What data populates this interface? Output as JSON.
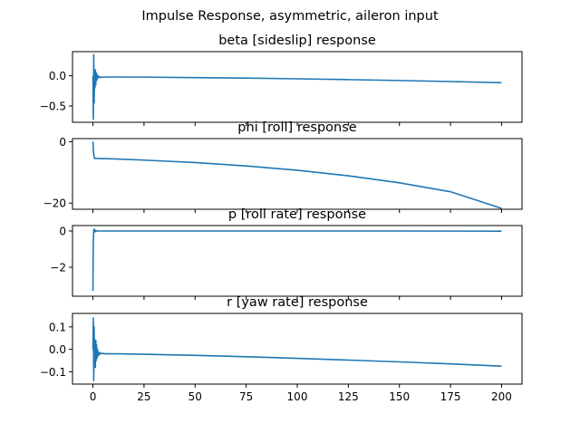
{
  "suptitle": "Impulse Response, asymmetric, aileron input",
  "line_color": "#1f77b4",
  "x_ticks": [
    0,
    25,
    50,
    75,
    100,
    125,
    150,
    175,
    200
  ],
  "chart_data": [
    {
      "type": "line",
      "title": "beta [sideslip] response",
      "xlim": [
        -10,
        210
      ],
      "ylim": [
        -0.77,
        0.4
      ],
      "yticks": [
        0.0,
        -0.5
      ],
      "ytick_labels": [
        "0.0",
        "−0.5"
      ],
      "x": [
        0,
        0.2,
        0.4,
        0.6,
        0.8,
        1.0,
        1.2,
        1.4,
        1.6,
        1.8,
        2.0,
        2.2,
        2.4,
        2.6,
        3.0,
        3.5,
        4.0,
        5,
        6,
        10,
        25,
        50,
        75,
        100,
        125,
        150,
        175,
        200
      ],
      "y": [
        0,
        -0.72,
        0.35,
        -0.45,
        0.05,
        -0.2,
        0.1,
        -0.15,
        0.05,
        -0.08,
        0.02,
        -0.05,
        0.0,
        -0.03,
        -0.01,
        -0.03,
        -0.02,
        -0.025,
        -0.02,
        -0.02,
        -0.022,
        -0.03,
        -0.038,
        -0.05,
        -0.063,
        -0.078,
        -0.095,
        -0.115
      ]
    },
    {
      "type": "line",
      "title": "phi [roll]  response",
      "xlim": [
        -10,
        210
      ],
      "ylim": [
        -22,
        1
      ],
      "yticks": [
        0,
        -20
      ],
      "ytick_labels": [
        "0",
        "−20"
      ],
      "x": [
        0,
        0.3,
        0.6,
        1.0,
        1.5,
        2.0,
        3,
        5,
        10,
        25,
        50,
        75,
        100,
        125,
        150,
        175,
        200
      ],
      "y": [
        0,
        -3.5,
        -5.2,
        -5.5,
        -5.4,
        -5.45,
        -5.5,
        -5.5,
        -5.6,
        -6.0,
        -6.8,
        -7.9,
        -9.3,
        -11.1,
        -13.4,
        -16.3,
        -21.7
      ]
    },
    {
      "type": "line",
      "title": "p [roll rate] response",
      "xlim": [
        -10,
        210
      ],
      "ylim": [
        -3.6,
        0.3
      ],
      "yticks": [
        0,
        -2
      ],
      "ytick_labels": [
        "0",
        "−2"
      ],
      "x": [
        0,
        0.1,
        0.2,
        0.4,
        0.6,
        0.8,
        1.0,
        1.3,
        1.6,
        2.0,
        3,
        5,
        10,
        50,
        100,
        150,
        200
      ],
      "y": [
        -3.3,
        -1.5,
        -0.5,
        0.05,
        0.1,
        -0.05,
        0.05,
        -0.03,
        0.02,
        0.0,
        0.0,
        0.0,
        0.0,
        0.0,
        0.0,
        0.0,
        -0.01
      ]
    },
    {
      "type": "line",
      "title": "r [yaw rate] response",
      "xlim": [
        -10,
        210
      ],
      "ylim": [
        -0.155,
        0.16
      ],
      "yticks": [
        0.1,
        0.0,
        -0.1
      ],
      "ytick_labels": [
        "0.1",
        "0.0",
        "−0.1"
      ],
      "x": [
        0,
        0.2,
        0.4,
        0.6,
        0.8,
        1.0,
        1.2,
        1.4,
        1.6,
        1.8,
        2.0,
        2.2,
        2.4,
        2.6,
        3.0,
        3.5,
        4.0,
        5,
        6,
        10,
        25,
        50,
        75,
        100,
        125,
        150,
        175,
        200
      ],
      "y": [
        0,
        0.14,
        -0.14,
        0.1,
        -0.08,
        0.04,
        -0.08,
        0.04,
        -0.05,
        0.02,
        -0.04,
        0.0,
        -0.03,
        -0.01,
        -0.025,
        -0.015,
        -0.02,
        -0.018,
        -0.02,
        -0.02,
        -0.022,
        -0.027,
        -0.033,
        -0.04,
        -0.048,
        -0.056,
        -0.065,
        -0.075
      ]
    }
  ]
}
